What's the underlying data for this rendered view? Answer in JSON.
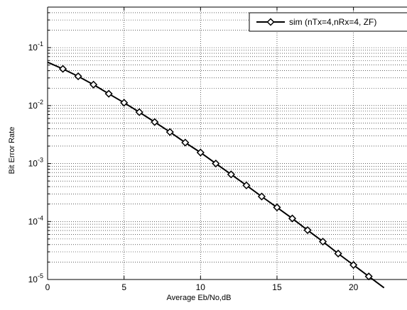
{
  "chart_data": {
    "type": "line",
    "title": "",
    "xlabel": "Average Eb/No,dB",
    "ylabel": "Bit Error Rate",
    "xlim": [
      0,
      23.5
    ],
    "ylim": [
      1e-05,
      0.5
    ],
    "yscale": "log",
    "grid": true,
    "legend_position": "top-right",
    "x_ticks": [
      "0",
      "5",
      "10",
      "15",
      "20"
    ],
    "y_ticks": [
      {
        "base": "10",
        "exp": "-1",
        "value": 0.1
      },
      {
        "base": "10",
        "exp": "-2",
        "value": 0.01
      },
      {
        "base": "10",
        "exp": "-3",
        "value": 0.001
      },
      {
        "base": "10",
        "exp": "-4",
        "value": 0.0001
      },
      {
        "base": "10",
        "exp": "-5",
        "value": 1e-05
      }
    ],
    "series": [
      {
        "name": "sim (nTx=4,nRx=4, ZF)",
        "color": "#000000",
        "marker": "diamond",
        "x": [
          0,
          1,
          2,
          3,
          4,
          5,
          6,
          7,
          8,
          9,
          10,
          11,
          12,
          13,
          14,
          15,
          16,
          17,
          18,
          19,
          20,
          21,
          22
        ],
        "y": [
          0.056,
          0.043,
          0.032,
          0.023,
          0.016,
          0.0112,
          0.0077,
          0.0052,
          0.0035,
          0.0023,
          0.00155,
          0.001,
          0.00065,
          0.00042,
          0.00027,
          0.000175,
          0.000113,
          7.1e-05,
          4.5e-05,
          2.8e-05,
          1.78e-05,
          1.13e-05,
          7.2e-06
        ]
      }
    ]
  }
}
